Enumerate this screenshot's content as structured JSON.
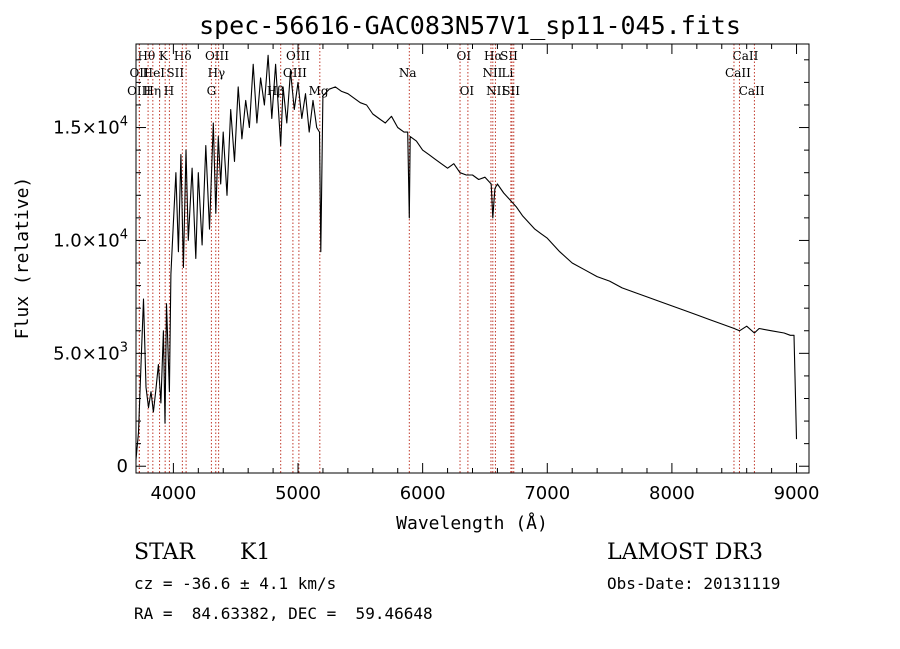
{
  "chart_data": {
    "type": "line",
    "title": "spec-56616-GAC083N57V1_sp11-045.fits",
    "xlabel": "Wavelength (Å)",
    "ylabel": "Flux (relative)",
    "xlim": [
      3700,
      9100
    ],
    "ylim": [
      -300,
      18700
    ],
    "xticks": [
      {
        "value": 4000,
        "label": "4000"
      },
      {
        "value": 5000,
        "label": "5000"
      },
      {
        "value": 6000,
        "label": "6000"
      },
      {
        "value": 7000,
        "label": "7000"
      },
      {
        "value": 8000,
        "label": "8000"
      },
      {
        "value": 9000,
        "label": "9000"
      }
    ],
    "yticks": [
      {
        "value": 0,
        "label": "0",
        "base": "0",
        "exp": ""
      },
      {
        "value": 5000,
        "label": "5.0×10³",
        "base": "5.0×10",
        "exp": "3"
      },
      {
        "value": 10000,
        "label": "1.0×10⁴",
        "base": "1.0×10",
        "exp": "4"
      },
      {
        "value": 15000,
        "label": "1.5×10⁴",
        "base": "1.5×10",
        "exp": "4"
      }
    ],
    "series": [
      {
        "name": "flux",
        "x": [
          3700,
          3720,
          3740,
          3760,
          3780,
          3800,
          3820,
          3840,
          3860,
          3880,
          3900,
          3920,
          3933,
          3945,
          3968,
          3980,
          4000,
          4020,
          4040,
          4060,
          4080,
          4101,
          4120,
          4150,
          4180,
          4200,
          4230,
          4260,
          4290,
          4320,
          4340,
          4360,
          4380,
          4400,
          4430,
          4460,
          4490,
          4520,
          4550,
          4580,
          4610,
          4640,
          4670,
          4700,
          4730,
          4760,
          4790,
          4820,
          4861,
          4880,
          4910,
          4940,
          4970,
          5000,
          5030,
          5060,
          5090,
          5120,
          5150,
          5172,
          5183,
          5200,
          5250,
          5300,
          5350,
          5400,
          5450,
          5500,
          5550,
          5600,
          5650,
          5700,
          5750,
          5800,
          5850,
          5880,
          5893,
          5900,
          5950,
          6000,
          6050,
          6100,
          6150,
          6200,
          6250,
          6300,
          6350,
          6400,
          6450,
          6500,
          6550,
          6563,
          6580,
          6600,
          6650,
          6700,
          6750,
          6800,
          6850,
          6900,
          6950,
          7000,
          7100,
          7200,
          7300,
          7400,
          7500,
          7600,
          7700,
          7800,
          7900,
          8000,
          8100,
          8200,
          8300,
          8400,
          8500,
          8542,
          8600,
          8662,
          8700,
          8800,
          8900,
          8950,
          8980,
          9000
        ],
        "y": [
          300,
          1500,
          4500,
          7400,
          3500,
          2600,
          3300,
          2400,
          3400,
          4500,
          2800,
          6000,
          1900,
          7200,
          3300,
          8500,
          10800,
          13000,
          9500,
          13800,
          8800,
          14000,
          10000,
          13200,
          9200,
          13000,
          9800,
          14200,
          10500,
          15200,
          11200,
          14600,
          12500,
          14800,
          12000,
          15800,
          13500,
          16800,
          14500,
          16200,
          15000,
          17800,
          15200,
          17200,
          16000,
          18200,
          15400,
          17800,
          14200,
          16800,
          15200,
          17500,
          15800,
          17000,
          15400,
          16500,
          14800,
          16200,
          15000,
          14800,
          9500,
          16400,
          16700,
          16800,
          16600,
          16500,
          16300,
          16100,
          16000,
          15600,
          15400,
          15200,
          15500,
          15000,
          14800,
          14800,
          11000,
          14600,
          14400,
          14000,
          13800,
          13600,
          13400,
          13200,
          13400,
          13000,
          12900,
          12900,
          12700,
          12800,
          12500,
          11000,
          12300,
          12500,
          12100,
          11800,
          11500,
          11100,
          10800,
          10500,
          10300,
          10100,
          9500,
          9000,
          8700,
          8400,
          8200,
          7900,
          7700,
          7500,
          7300,
          7100,
          6900,
          6700,
          6500,
          6300,
          6100,
          6000,
          6200,
          5900,
          6100,
          6000,
          5900,
          5800,
          5800,
          1200
        ]
      }
    ],
    "line_markers": [
      {
        "label": "Hθ",
        "x": 3797,
        "row": 0,
        "tx": 3783
      },
      {
        "label": "K",
        "x": 3934,
        "row": 0,
        "tx": 3920
      },
      {
        "label": "Hδ",
        "x": 4102,
        "row": 0,
        "tx": 4075
      },
      {
        "label": "OIII",
        "x": 4363,
        "row": 0,
        "tx": 4350
      },
      {
        "label": "OIII",
        "x": 4959,
        "row": 0,
        "tx": 5000
      },
      {
        "label": "OI",
        "x": 6300,
        "row": 0,
        "tx": 6330
      },
      {
        "label": "Hα",
        "x": 6563,
        "row": 0,
        "tx": 6567
      },
      {
        "label": "SII",
        "x": 6717,
        "row": 0,
        "tx": 6693
      },
      {
        "label": "CaII",
        "x": 8542,
        "row": 0,
        "tx": 8590
      },
      {
        "label": "OII",
        "x": 3727,
        "row": 1,
        "tx": 3725
      },
      {
        "label": "HeI",
        "x": 3889,
        "row": 1,
        "tx": 3843
      },
      {
        "label": "SII",
        "x": 4072,
        "row": 1,
        "tx": 4015
      },
      {
        "label": "Hγ",
        "x": 4340,
        "row": 1,
        "tx": 4345
      },
      {
        "label": "OIII",
        "x": 5007,
        "row": 1,
        "tx": 4975
      },
      {
        "label": "Na",
        "x": 5893,
        "row": 1,
        "tx": 5880
      },
      {
        "label": "NII",
        "x": 6584,
        "row": 1,
        "tx": 6560
      },
      {
        "label": "Li",
        "x": 6708,
        "row": 1,
        "tx": 6680
      },
      {
        "label": "CaII",
        "x": 8498,
        "row": 1,
        "tx": 8530
      },
      {
        "label": "OIII",
        "x": 3727,
        "row": 2,
        "tx": 3725
      },
      {
        "label": "Hη",
        "x": 3835,
        "row": 2,
        "tx": 3830
      },
      {
        "label": "H",
        "x": 3968,
        "row": 2,
        "tx": 3965
      },
      {
        "label": "G",
        "x": 4305,
        "row": 2,
        "tx": 4305
      },
      {
        "label": "Hβ",
        "x": 4861,
        "row": 2,
        "tx": 4820
      },
      {
        "label": "Mg",
        "x": 5175,
        "row": 2,
        "tx": 5165
      },
      {
        "label": "OI",
        "x": 6363,
        "row": 2,
        "tx": 6355
      },
      {
        "label": "NII",
        "x": 6548,
        "row": 2,
        "tx": 6590
      },
      {
        "label": "SII",
        "x": 6731,
        "row": 2,
        "tx": 6710
      },
      {
        "label": "CaII",
        "x": 8662,
        "row": 2,
        "tx": 8640
      }
    ],
    "marker_color": "#c0392b",
    "line_color": "#000000"
  },
  "info": {
    "object_type": "STAR",
    "subclass": "K1",
    "survey": "LAMOST DR3",
    "redshift": "cz = -36.6 ± 4.1 km/s",
    "obs_date": "Obs-Date: 20131119",
    "coords": "RA =  84.63382, DEC =  59.46648"
  }
}
